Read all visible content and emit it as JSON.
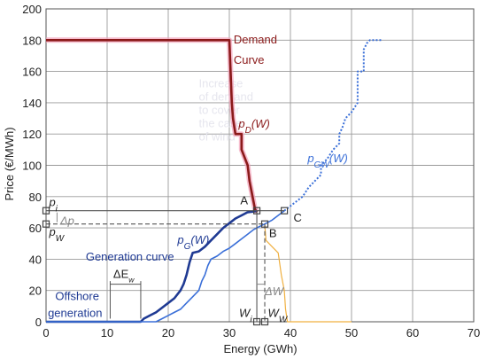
{
  "chart_data": {
    "type": "line",
    "xlabel": "Energy   (GWh)",
    "ylabel": "Price   (€/MWh)",
    "xlim": [
      0,
      70
    ],
    "ylim": [
      0,
      200
    ],
    "x_ticks": [
      "0",
      "10",
      "20",
      "30",
      "40",
      "50",
      "60",
      "70"
    ],
    "y_ticks": [
      "0",
      "20",
      "40",
      "60",
      "80",
      "100",
      "120",
      "140",
      "160",
      "180",
      "200"
    ],
    "grid": true,
    "colors": {
      "demand": "#8b1a1a",
      "demand_glow": "#f2a0b8",
      "generation": "#1f3a93",
      "generation_wind": "#3a6fd8",
      "wind_pale": "#7fa8e8",
      "shifted_small": "#f0b040",
      "guide": "#555555",
      "delta_gray": "#888888"
    },
    "series": [
      {
        "key": "demand",
        "points": [
          [
            0,
            180
          ],
          [
            30,
            180
          ],
          [
            30.2,
            160
          ],
          [
            30.4,
            140
          ],
          [
            30.6,
            130
          ],
          [
            31,
            120
          ],
          [
            32,
            120
          ],
          [
            32,
            110
          ],
          [
            33,
            100
          ],
          [
            33.3,
            90
          ],
          [
            33.8,
            80
          ],
          [
            34.2,
            72
          ],
          [
            34.5,
            70
          ]
        ]
      },
      {
        "key": "generation",
        "points": [
          [
            0,
            0
          ],
          [
            15.5,
            0
          ],
          [
            16,
            2
          ],
          [
            17,
            4
          ],
          [
            18,
            6
          ],
          [
            19,
            9
          ],
          [
            20,
            12
          ],
          [
            21,
            15
          ],
          [
            22,
            20
          ],
          [
            22.5,
            24
          ],
          [
            23,
            30
          ],
          [
            23.5,
            38
          ],
          [
            24,
            44
          ],
          [
            25,
            45
          ],
          [
            26,
            48
          ],
          [
            27,
            52
          ],
          [
            28,
            56
          ],
          [
            29,
            60
          ],
          [
            30,
            63
          ],
          [
            31,
            66
          ],
          [
            32,
            68
          ],
          [
            33,
            70
          ],
          [
            34,
            70.5
          ],
          [
            34.5,
            71
          ]
        ]
      },
      {
        "key": "generation_wind",
        "points": [
          [
            0,
            0
          ],
          [
            18,
            0
          ],
          [
            19,
            2
          ],
          [
            20,
            4
          ],
          [
            21,
            6
          ],
          [
            22,
            8
          ],
          [
            23,
            12
          ],
          [
            24,
            16
          ],
          [
            25,
            20
          ],
          [
            25.5,
            26
          ],
          [
            26,
            30
          ],
          [
            26.5,
            36
          ],
          [
            27,
            40
          ],
          [
            28,
            42
          ],
          [
            29,
            45
          ],
          [
            30,
            47
          ],
          [
            31,
            50
          ],
          [
            32,
            53
          ],
          [
            33,
            56
          ],
          [
            34,
            59
          ],
          [
            35,
            61
          ],
          [
            35.8,
            62.5
          ],
          [
            37,
            65
          ],
          [
            38,
            68
          ],
          [
            39,
            71
          ]
        ]
      },
      {
        "key": "wind_shifted",
        "points": [
          [
            39,
            71
          ],
          [
            40,
            74
          ],
          [
            42,
            80
          ],
          [
            43,
            86
          ],
          [
            44,
            90
          ],
          [
            45,
            94
          ],
          [
            45,
            100
          ],
          [
            46,
            104
          ],
          [
            47,
            110
          ],
          [
            48,
            114
          ],
          [
            48,
            120
          ],
          [
            48.5,
            124
          ],
          [
            49,
            130
          ],
          [
            50,
            134
          ],
          [
            51,
            140
          ],
          [
            51,
            160
          ],
          [
            52,
            160
          ],
          [
            52,
            174
          ],
          [
            52.5,
            178
          ],
          [
            53,
            180
          ],
          [
            55,
            180
          ]
        ]
      },
      {
        "key": "shifted_small",
        "points": [
          [
            35.8,
            62
          ],
          [
            36,
            52
          ],
          [
            37,
            48
          ],
          [
            38,
            44
          ],
          [
            38.5,
            30
          ],
          [
            39,
            20
          ],
          [
            39.2,
            8
          ],
          [
            39.5,
            0
          ],
          [
            50,
            0
          ]
        ]
      }
    ],
    "markers": {
      "A": [
        34.5,
        71
      ],
      "B": [
        35.8,
        62.5
      ],
      "C": [
        39,
        71
      ],
      "p_i": [
        0,
        71
      ],
      "p_w": [
        0,
        62.5
      ],
      "W_i": [
        34.5,
        0
      ],
      "W_W": [
        35.8,
        0
      ]
    },
    "annotations": {
      "demand_curve": [
        "Demand",
        "Curve"
      ],
      "p_D": [
        "p",
        "D",
        "(W)"
      ],
      "p_GW": [
        "p",
        "GW",
        "(W)"
      ],
      "p_G": [
        "p",
        "G",
        "(W)"
      ],
      "generation_curve": "Generation curve",
      "offshore": [
        "Offshore",
        "generation"
      ],
      "delta_E": [
        "ΔE",
        "w"
      ],
      "delta_p": "Δp",
      "delta_W": "ΔW",
      "label_A": "A",
      "label_B": "B",
      "label_C": "C",
      "p_i": [
        "p",
        "i"
      ],
      "p_w": [
        "p",
        "W"
      ],
      "W_i": [
        "W",
        "i"
      ],
      "W_W": [
        "W",
        "W"
      ],
      "faded": [
        "Increase",
        "of demand",
        "to cover",
        "the case",
        "of wind"
      ]
    }
  }
}
